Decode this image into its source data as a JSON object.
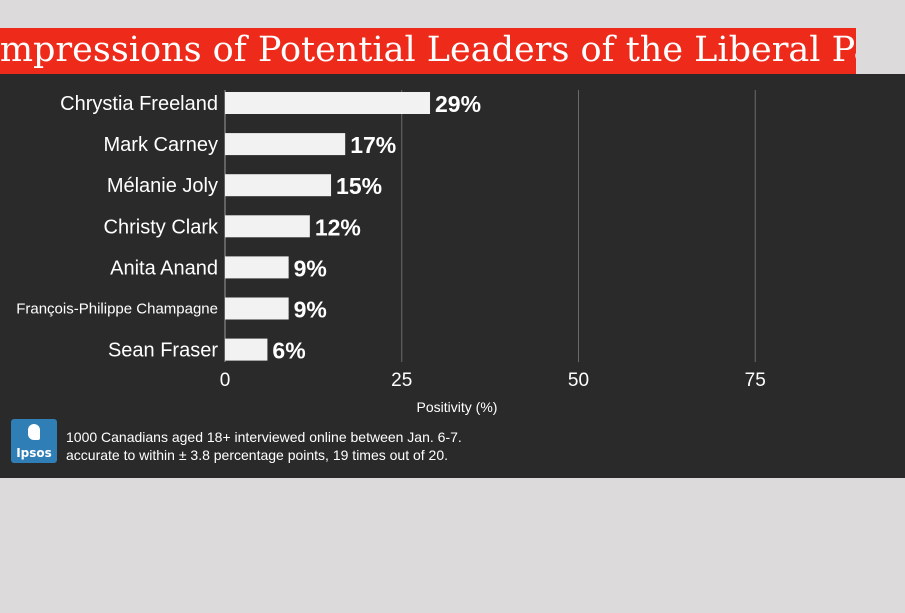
{
  "chart_data": {
    "type": "bar",
    "orientation": "horizontal",
    "title": "Impressions of Potential Leaders of the Liberal Party",
    "categories": [
      "Chrystia Freeland",
      "Mark Carney",
      "Mélanie Joly",
      "Christy Clark",
      "Anita Anand",
      "François-Philippe Champagne",
      "Sean Fraser"
    ],
    "values": [
      29,
      17,
      15,
      12,
      9,
      9,
      6
    ],
    "value_labels": [
      "29%",
      "17%",
      "15%",
      "12%",
      "9%",
      "9%",
      "6%"
    ],
    "xlabel": "Positivity (%)",
    "ylabel": "",
    "xlim": [
      0,
      75
    ],
    "xticks": [
      "0",
      "25",
      "50",
      "75"
    ],
    "grid": true,
    "colors": {
      "bar": "#f2f2f2",
      "background": "#2a2a2a",
      "title_bar": "#ee2a1b",
      "grid": "#6a6a6a"
    }
  },
  "footer": {
    "logo_text": "Ipsos",
    "note_line1": "1000 Canadians aged 18+ interviewed online between Jan. 6-7.",
    "note_line2": "accurate to within ± 3.8 percentage points, 19 times out of 20."
  }
}
